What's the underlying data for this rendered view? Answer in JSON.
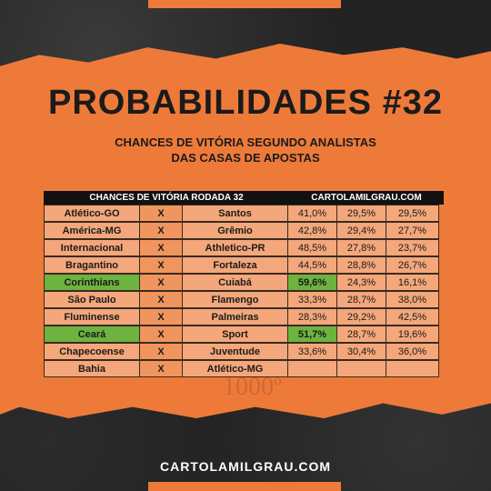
{
  "title": "PROBABILIDADES #32",
  "subtitle_line1": "CHANCES DE VITÓRIA SEGUNDO ANALISTAS",
  "subtitle_line2": "DAS CASAS DE APOSTAS",
  "table": {
    "header_left": "CHANCES DE VITÓRIA RODADA 32",
    "header_right": "CARTOLAMILGRAU.COM",
    "highlight_color": "#6db33f",
    "rows": [
      {
        "home": "Atlético-GO",
        "vs": "X",
        "away": "Santos",
        "p_home": "41,0%",
        "p_draw": "29,5%",
        "p_away": "29,5%",
        "highlight_home": false
      },
      {
        "home": "América-MG",
        "vs": "X",
        "away": "Grêmio",
        "p_home": "42,8%",
        "p_draw": "29,4%",
        "p_away": "27,7%",
        "highlight_home": false
      },
      {
        "home": "Internacional",
        "vs": "X",
        "away": "Athletico-PR",
        "p_home": "48,5%",
        "p_draw": "27,8%",
        "p_away": "23,7%",
        "highlight_home": false
      },
      {
        "home": "Bragantino",
        "vs": "X",
        "away": "Fortaleza",
        "p_home": "44,5%",
        "p_draw": "28,8%",
        "p_away": "26,7%",
        "highlight_home": false
      },
      {
        "home": "Corinthians",
        "vs": "X",
        "away": "Cuiabá",
        "p_home": "59,6%",
        "p_draw": "24,3%",
        "p_away": "16,1%",
        "highlight_home": true
      },
      {
        "home": "São Paulo",
        "vs": "X",
        "away": "Flamengo",
        "p_home": "33,3%",
        "p_draw": "28,7%",
        "p_away": "38,0%",
        "highlight_home": false
      },
      {
        "home": "Fluminense",
        "vs": "X",
        "away": "Palmeiras",
        "p_home": "28,3%",
        "p_draw": "29,2%",
        "p_away": "42,5%",
        "highlight_home": false
      },
      {
        "home": "Ceará",
        "vs": "X",
        "away": "Sport",
        "p_home": "51,7%",
        "p_draw": "28,7%",
        "p_away": "19,6%",
        "highlight_home": true
      },
      {
        "home": "Chapecoense",
        "vs": "X",
        "away": "Juventude",
        "p_home": "33,6%",
        "p_draw": "30,4%",
        "p_away": "36,0%",
        "highlight_home": false
      },
      {
        "home": "Bahia",
        "vs": "X",
        "away": "Atlético-MG",
        "p_home": "",
        "p_draw": "",
        "p_away": "",
        "highlight_home": false
      }
    ]
  },
  "watermark_text": "1000º",
  "footer": "CARTOLAMILGRAU.COM"
}
